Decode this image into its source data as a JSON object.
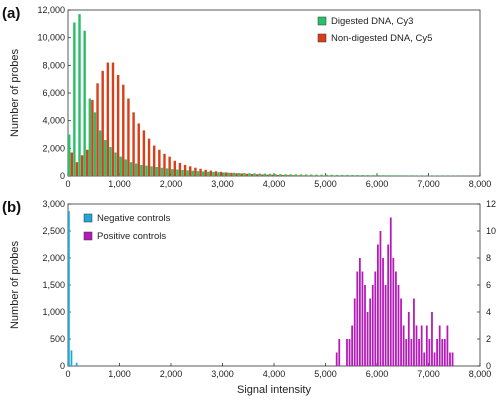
{
  "chart_data": [
    {
      "type": "bar",
      "panel_label": "(a)",
      "ylabel": "Number of probes",
      "xlabel": "",
      "xlim": [
        0,
        8000
      ],
      "ylim": [
        0,
        12000
      ],
      "xticks": [
        "0",
        "1,000",
        "2,000",
        "3,000",
        "4,000",
        "5,000",
        "6,000",
        "7,000",
        "8,000"
      ],
      "xtick_values": [
        0,
        1000,
        2000,
        3000,
        4000,
        5000,
        6000,
        7000,
        8000
      ],
      "yticks": [
        "0",
        "2,000",
        "4,000",
        "6,000",
        "8,000",
        "10,000",
        "12,000"
      ],
      "ytick_values": [
        0,
        2000,
        4000,
        6000,
        8000,
        10000,
        12000
      ],
      "legend_position": "top-right",
      "bin_width": 100,
      "x": [
        0,
        100,
        200,
        300,
        400,
        500,
        600,
        700,
        800,
        900,
        1000,
        1100,
        1200,
        1300,
        1400,
        1500,
        1600,
        1700,
        1800,
        1900,
        2000,
        2100,
        2200,
        2300,
        2400,
        2500,
        2600,
        2700,
        2800,
        2900,
        3000,
        3100,
        3200,
        3300,
        3400,
        3500,
        3600,
        3700,
        3800,
        3900,
        4000,
        4100,
        4200,
        4300,
        4400,
        4500,
        4600,
        4700,
        4800,
        4900,
        5000,
        5100,
        5200,
        5300,
        5400,
        5500,
        5600,
        5700,
        5800,
        5900,
        6000,
        6100,
        6200,
        6300,
        6400,
        6500,
        6600,
        6700,
        6800,
        6900,
        7000,
        7100,
        7200,
        7300,
        7400,
        7500,
        7600,
        7700,
        7800,
        7900
      ],
      "series": [
        {
          "name": "Digested DNA, Cy3",
          "color": "#2bbf6a",
          "values": [
            3000,
            11100,
            11700,
            10500,
            5600,
            4600,
            3300,
            2600,
            2100,
            1700,
            1400,
            1200,
            1000,
            900,
            800,
            750,
            700,
            650,
            600,
            550,
            500,
            470,
            440,
            410,
            380,
            350,
            330,
            310,
            290,
            270,
            250,
            240,
            230,
            220,
            210,
            200,
            190,
            180,
            170,
            160,
            150,
            140,
            130,
            125,
            120,
            115,
            110,
            105,
            100,
            95,
            90,
            85,
            80,
            78,
            75,
            72,
            70,
            68,
            65,
            62,
            60,
            58,
            55,
            52,
            50,
            48,
            45,
            42,
            40,
            38,
            35,
            32,
            30,
            28,
            25,
            22,
            20,
            18,
            15,
            12
          ]
        },
        {
          "name": "Non-digested DNA, Cy5",
          "color": "#d8401a",
          "values": [
            1700,
            1000,
            1500,
            1900,
            5500,
            6700,
            7600,
            8200,
            8200,
            7300,
            6600,
            5600,
            4600,
            3800,
            3300,
            2700,
            2200,
            1900,
            1600,
            1400,
            1100,
            950,
            800,
            700,
            600,
            520,
            450,
            390,
            340,
            300,
            260,
            230,
            200,
            180,
            160,
            140,
            125,
            110,
            100,
            90,
            80,
            72,
            65,
            58,
            52,
            47,
            42,
            38,
            34,
            30,
            27,
            24,
            22,
            20,
            18,
            16,
            14,
            12,
            11,
            10,
            9,
            8,
            7,
            6,
            6,
            5,
            5,
            4,
            4,
            3,
            3,
            3,
            2,
            2,
            2,
            2,
            1,
            1,
            1,
            1
          ]
        }
      ]
    },
    {
      "type": "bar",
      "panel_label": "(b)",
      "ylabel": "Number of probes",
      "xlabel": "Signal intensity",
      "xlim": [
        0,
        8000
      ],
      "ylim_left": [
        0,
        3000
      ],
      "ylim_right": [
        0,
        12
      ],
      "xticks": [
        "0",
        "1,000",
        "2,000",
        "3,000",
        "4,000",
        "5,000",
        "6,000",
        "7,000",
        "8,000"
      ],
      "xtick_values": [
        0,
        1000,
        2000,
        3000,
        4000,
        5000,
        6000,
        7000,
        8000
      ],
      "yticks_left": [
        "0",
        "500",
        "1,000",
        "1,500",
        "2,000",
        "2,500",
        "3,000"
      ],
      "ytick_values_left": [
        0,
        500,
        1000,
        1500,
        2000,
        2500,
        3000
      ],
      "yticks_right": [
        "0",
        "2",
        "4",
        "6",
        "8",
        "10",
        "12"
      ],
      "ytick_values_right": [
        0,
        2,
        4,
        6,
        8,
        10,
        12
      ],
      "legend_position": "top-left",
      "series": [
        {
          "name": "Negative controls",
          "color": "#22a6d8",
          "axis": "left",
          "bin_width": 50,
          "x": [
            0,
            50,
            150
          ],
          "values": [
            2870,
            290,
            60
          ]
        },
        {
          "name": "Positive controls",
          "color": "#b21bb8",
          "axis": "right",
          "bin_width": 50,
          "x": [
            5200,
            5250,
            5400,
            5450,
            5500,
            5550,
            5600,
            5650,
            5700,
            5750,
            5800,
            5850,
            5900,
            5950,
            6000,
            6050,
            6100,
            6150,
            6200,
            6250,
            6300,
            6350,
            6400,
            6450,
            6500,
            6550,
            6600,
            6650,
            6700,
            6750,
            6800,
            6850,
            6900,
            6950,
            7000,
            7050,
            7100,
            7150,
            7200,
            7250,
            7300,
            7350,
            7400,
            7450
          ],
          "values": [
            1,
            2,
            2,
            2,
            3,
            5,
            7,
            8,
            7,
            6,
            4,
            5,
            6,
            7,
            9,
            10,
            8,
            6,
            9,
            11,
            8,
            7,
            6,
            5,
            3,
            2,
            4,
            2,
            5,
            3,
            2,
            3,
            1,
            3,
            2,
            4,
            1,
            2,
            3,
            2,
            2,
            3,
            1,
            1
          ]
        }
      ]
    }
  ]
}
